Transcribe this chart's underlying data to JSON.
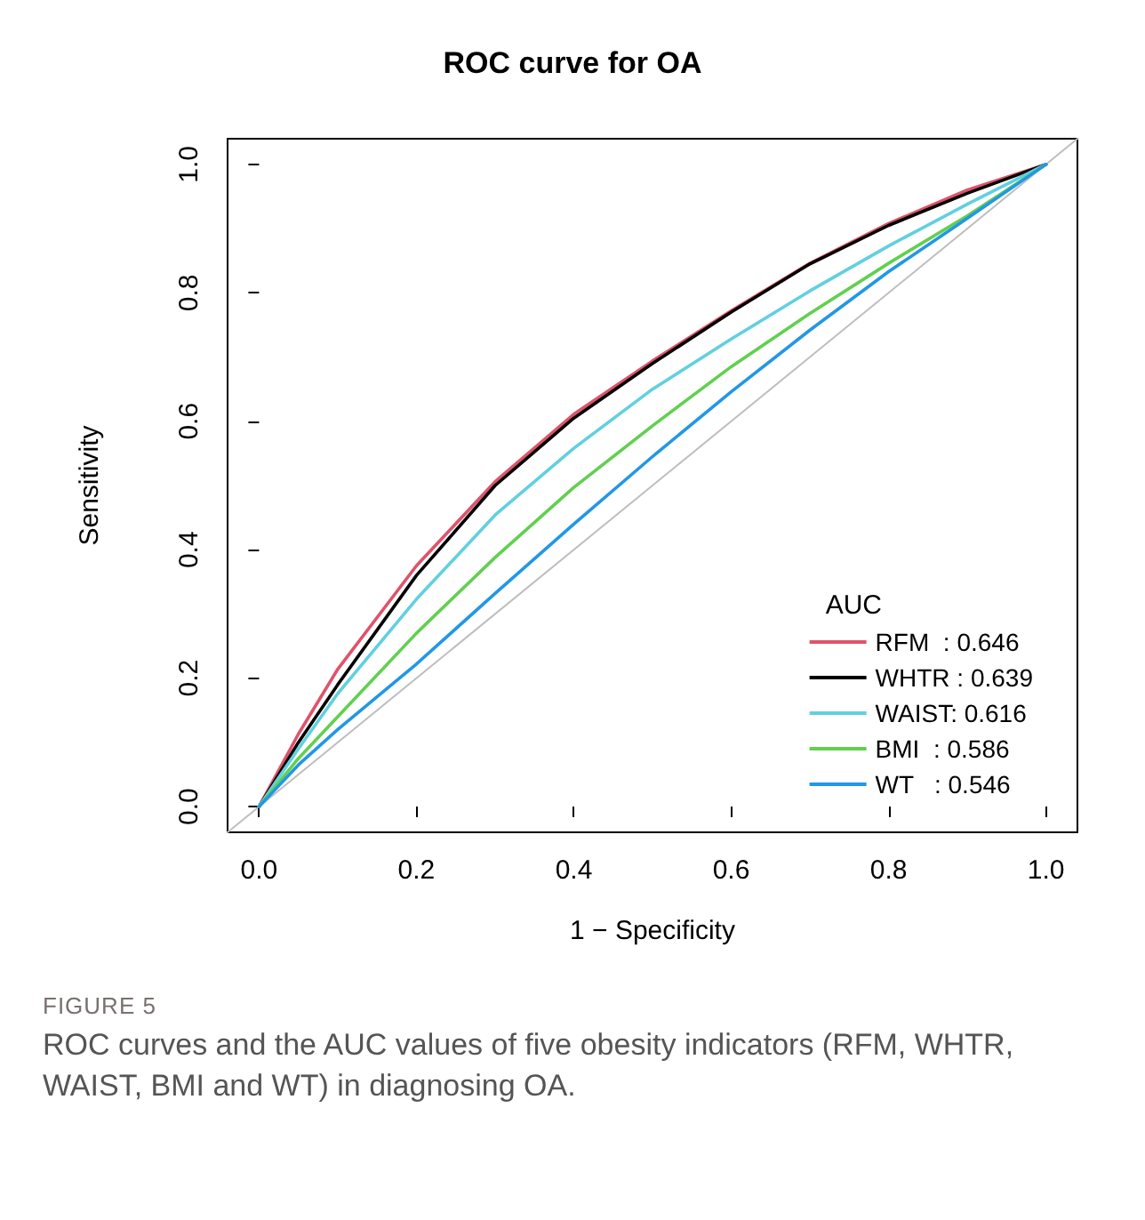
{
  "chart_data": {
    "type": "line",
    "title": "ROC curve for OA",
    "xlabel": "1 − Specificity",
    "ylabel": "Sensitivity",
    "legend_title": "AUC",
    "legend": "bottom right",
    "grid": false,
    "marker": "none",
    "line_style": "solid",
    "xlim": [
      -0.04,
      1.04
    ],
    "ylim": [
      -0.04,
      1.04
    ],
    "xticks": [
      {
        "value": 0,
        "label": "0.0"
      },
      {
        "value": 0.2,
        "label": "0.2"
      },
      {
        "value": 0.4,
        "label": "0.4"
      },
      {
        "value": 0.6,
        "label": "0.6"
      },
      {
        "value": 0.8,
        "label": "0.8"
      },
      {
        "value": 1,
        "label": "1.0"
      }
    ],
    "yticks": [
      {
        "value": 0,
        "label": "0.0"
      },
      {
        "value": 0.2,
        "label": "0.2"
      },
      {
        "value": 0.4,
        "label": "0.4"
      },
      {
        "value": 0.6,
        "label": "0.6"
      },
      {
        "value": 0.8,
        "label": "0.8"
      },
      {
        "value": 1,
        "label": "1.0"
      }
    ],
    "x": [
      0,
      0.05,
      0.1,
      0.2,
      0.3,
      0.4,
      0.5,
      0.6,
      0.7,
      0.8,
      0.9,
      1
    ],
    "series": [
      {
        "name": "RFM  : 0.646",
        "color": "#df536b",
        "values": [
          0,
          0.113,
          0.214,
          0.375,
          0.506,
          0.611,
          0.694,
          0.772,
          0.846,
          0.908,
          0.96,
          1
        ]
      },
      {
        "name": "WHTR : 0.639",
        "color": "#000000",
        "values": [
          0,
          0.1,
          0.19,
          0.36,
          0.5,
          0.605,
          0.69,
          0.77,
          0.845,
          0.905,
          0.955,
          1
        ]
      },
      {
        "name": "WAIST: 0.616",
        "color": "#61d0df",
        "values": [
          0,
          0.09,
          0.176,
          0.323,
          0.454,
          0.558,
          0.65,
          0.728,
          0.803,
          0.873,
          0.938,
          1
        ]
      },
      {
        "name": "BMI  : 0.586",
        "color": "#61d04f",
        "values": [
          0,
          0.075,
          0.14,
          0.27,
          0.388,
          0.497,
          0.593,
          0.685,
          0.768,
          0.846,
          0.92,
          1
        ]
      },
      {
        "name": "WT   : 0.546",
        "color": "#2297e6",
        "values": [
          0,
          0.065,
          0.12,
          0.222,
          0.332,
          0.44,
          0.545,
          0.646,
          0.742,
          0.833,
          0.916,
          1
        ]
      },
      {
        "color": "#bebebe",
        "x": [
          -0.04,
          1.04
        ],
        "values": [
          -0.04,
          1.04
        ]
      }
    ],
    "annotations": [
      "FIGURE 5",
      "ROC curves and the AUC values of five obesity indicators (RFM, WHTR, WAIST, BMI and WT) in diagnosing OA."
    ]
  }
}
